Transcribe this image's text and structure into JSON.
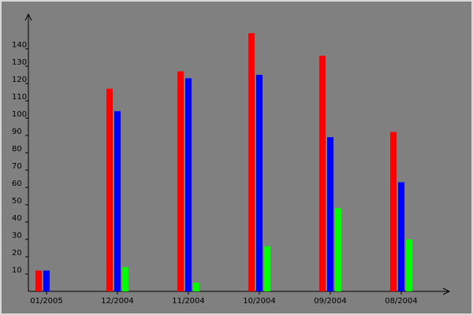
{
  "chart_data": {
    "type": "bar",
    "title": "",
    "xlabel": "",
    "ylabel": "",
    "categories": [
      "01/2005",
      "12/2004",
      "11/2004",
      "10/2004",
      "09/2004",
      "08/2004"
    ],
    "series": [
      {
        "values": [
          12,
          117,
          127,
          149,
          136,
          92
        ],
        "color": "#ff0000"
      },
      {
        "values": [
          12,
          104,
          123,
          125,
          89,
          63
        ],
        "color": "#0000ff"
      },
      {
        "values": [
          0,
          14,
          5,
          26,
          48,
          30
        ],
        "color": "#00ff00"
      }
    ],
    "ylim": [
      0,
      150
    ],
    "yticks": [
      10,
      20,
      30,
      40,
      50,
      60,
      70,
      80,
      90,
      100,
      110,
      120,
      130,
      140
    ],
    "grid": false,
    "legend": "none",
    "background": "#808080"
  }
}
